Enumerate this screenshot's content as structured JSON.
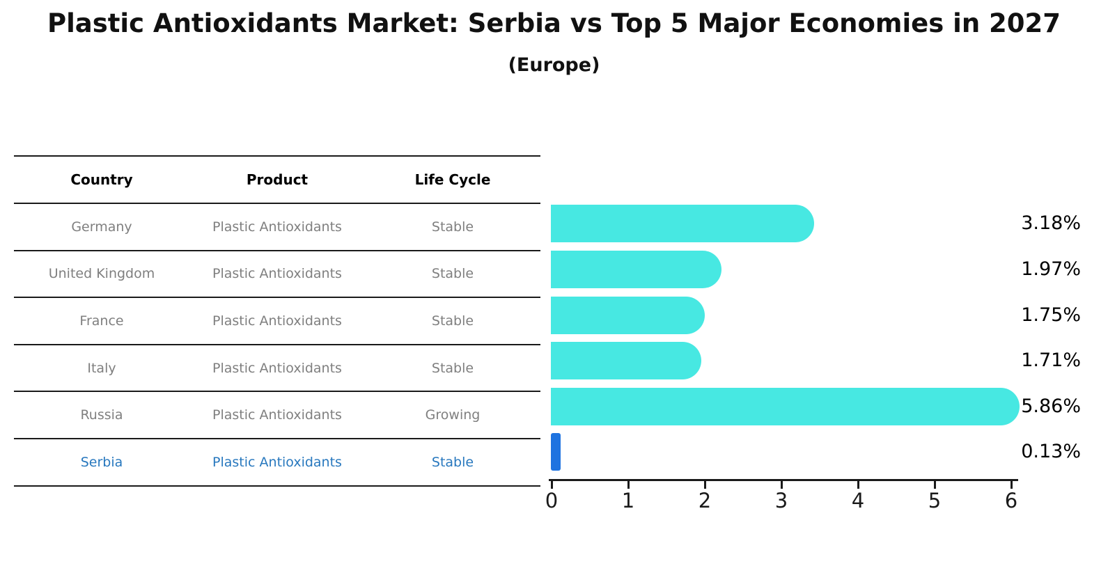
{
  "chart_data": {
    "type": "bar",
    "orientation": "horizontal",
    "title": "Plastic Antioxidants Market: Serbia vs Top 5 Major Economies in 2027",
    "subtitle": "(Europe)",
    "categories": [
      "Germany",
      "United Kingdom",
      "France",
      "Italy",
      "Russia",
      "Serbia"
    ],
    "values": [
      3.18,
      1.97,
      1.75,
      1.71,
      5.86,
      0.13
    ],
    "value_labels": [
      "3.18%",
      "1.97%",
      "1.75%",
      "1.71%",
      "5.86%",
      "0.13%"
    ],
    "x_ticks": [
      "0",
      "1",
      "2",
      "3",
      "4",
      "5",
      "6"
    ],
    "xlim": [
      0,
      6.2
    ],
    "grid": false,
    "legend": "none",
    "bar_color": "#47e8e2",
    "highlight_index": 5,
    "highlight_color": "#1e73e0"
  },
  "table": {
    "headers": [
      "Country",
      "Product",
      "Life Cycle"
    ],
    "rows": [
      {
        "country": "Germany",
        "product": "Plastic Antioxidants",
        "life_cycle": "Stable",
        "highlight": false
      },
      {
        "country": "United Kingdom",
        "product": "Plastic Antioxidants",
        "life_cycle": "Stable",
        "highlight": false
      },
      {
        "country": "France",
        "product": "Plastic Antioxidants",
        "life_cycle": "Stable",
        "highlight": false
      },
      {
        "country": "Italy",
        "product": "Plastic Antioxidants",
        "life_cycle": "Stable",
        "highlight": false
      },
      {
        "country": "Russia",
        "product": "Plastic Antioxidants",
        "life_cycle": "Growing",
        "highlight": false
      },
      {
        "country": "Serbia",
        "product": "Plastic Antioxidants",
        "life_cycle": "Stable",
        "highlight": true
      }
    ]
  },
  "colors": {
    "table_line": "#1a1a1a",
    "row_text": "#7f7f7f",
    "highlight_text": "#2878be",
    "axis": "#1a1a1a",
    "background": "#ffffff"
  }
}
